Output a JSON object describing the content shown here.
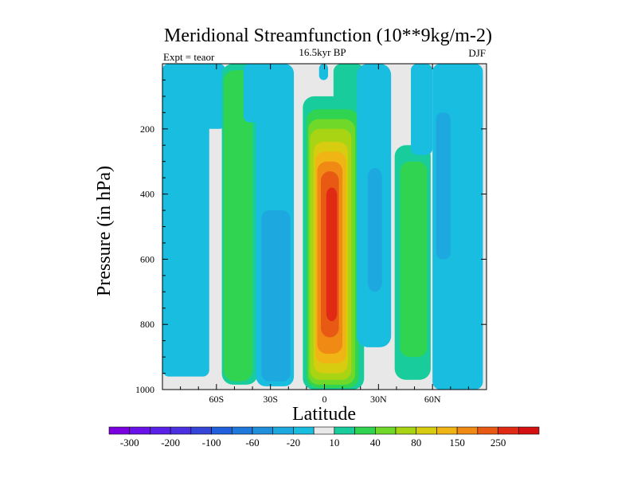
{
  "chart_data": {
    "type": "contour",
    "title": "Meridional Streamfunction (10**9kg/m-2)",
    "subtitle": "16.5kyr BP",
    "left_annotation": "Expt = teaor",
    "right_annotation": "DJF",
    "xlabel": "Latitude",
    "ylabel": "Pressure (in hPa)",
    "xlim": [
      -90,
      90
    ],
    "ylim": [
      1000,
      0
    ],
    "xticks": [
      {
        "value": -60,
        "label": "60S"
      },
      {
        "value": -30,
        "label": "30S"
      },
      {
        "value": 0,
        "label": "0"
      },
      {
        "value": 30,
        "label": "30N"
      },
      {
        "value": 60,
        "label": "60N"
      }
    ],
    "yticks": [
      {
        "value": 200,
        "label": "200"
      },
      {
        "value": 400,
        "label": "400"
      },
      {
        "value": 600,
        "label": "600"
      },
      {
        "value": 800,
        "label": "800"
      },
      {
        "value": 1000,
        "label": "1000"
      }
    ],
    "colorbar": {
      "levels": [
        -300,
        -250,
        -200,
        -150,
        -100,
        -80,
        -60,
        -40,
        -20,
        -10,
        10,
        20,
        40,
        60,
        80,
        100,
        150,
        200,
        250,
        300
      ],
      "shown_labels": [
        "-300",
        "-200",
        "-100",
        "-60",
        "-20",
        "10",
        "40",
        "80",
        "150",
        "250"
      ],
      "colors": [
        "#7a00e0",
        "#6a10e8",
        "#5a20e8",
        "#4a30e0",
        "#3545d8",
        "#2060dc",
        "#1f78dc",
        "#1f8fdc",
        "#1ea8e0",
        "#19bde0",
        "#e8e8e8",
        "#18cc9c",
        "#30d450",
        "#70d828",
        "#a8d414",
        "#d8cc10",
        "#f0b414",
        "#f08a14",
        "#e85a14",
        "#e02a14",
        "#d41010"
      ]
    },
    "fields": [
      {
        "name": "tropical-cell",
        "sign": "positive",
        "lat_range": [
          -8,
          16
        ],
        "p_range": [
          1000,
          0
        ],
        "core_value": 250
      },
      {
        "name": "southern-midlat-positive",
        "sign": "positive",
        "lat_range": [
          -55,
          -38
        ],
        "p_range": [
          990,
          0
        ],
        "core_value": 40
      },
      {
        "name": "northern-midlat-positive",
        "sign": "positive",
        "lat_range": [
          40,
          58
        ],
        "p_range": [
          970,
          0
        ],
        "core_value": 40
      },
      {
        "name": "southern-polar-negative",
        "sign": "negative",
        "lat_range": [
          -90,
          -65
        ],
        "p_range": [
          960,
          0
        ],
        "core_value": -20
      },
      {
        "name": "southern-subtropic-negative",
        "sign": "negative",
        "lat_range": [
          -36,
          -18
        ],
        "p_range": [
          990,
          0
        ],
        "core_value": -20
      },
      {
        "name": "northern-subtropic-negative",
        "sign": "negative",
        "lat_range": [
          17,
          36
        ],
        "p_range": [
          870,
          0
        ],
        "core_value": -60
      },
      {
        "name": "northern-polar-negative",
        "sign": "negative",
        "lat_range": [
          60,
          88
        ],
        "p_range": [
          1000,
          0
        ],
        "core_value": -20
      }
    ]
  }
}
